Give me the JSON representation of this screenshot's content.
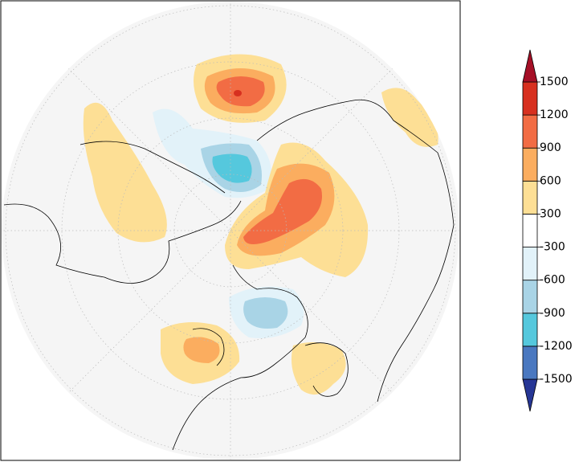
{
  "colorbar": {
    "levels": [
      -1500,
      -1200,
      -900,
      -600,
      -300,
      300,
      600,
      900,
      1200,
      1500
    ],
    "colors": [
      "#263695",
      "#4a78c0",
      "#55c8dd",
      "#a9d4e6",
      "#e2f2f9",
      "#ffffff",
      "#fddf95",
      "#fbad5f",
      "#f26c44",
      "#d7301f",
      "#a50f26"
    ]
  }
}
